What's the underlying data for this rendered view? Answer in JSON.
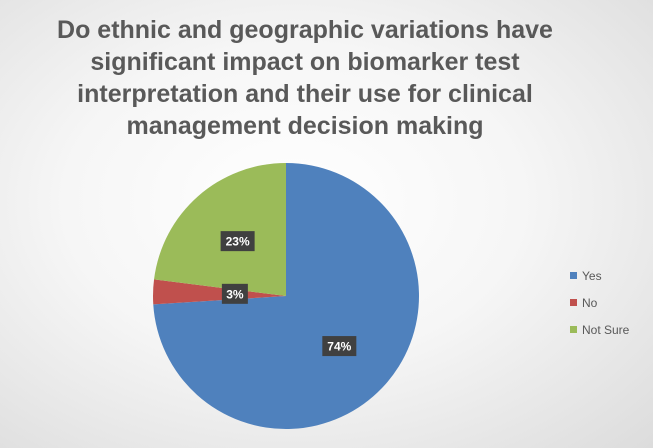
{
  "chart_data": {
    "type": "pie",
    "title": "Do ethnic and geographic variations have significant impact on biomarker test interpretation and their use for clinical management decision making",
    "categories": [
      "Yes",
      "No",
      "Not Sure"
    ],
    "values": [
      74,
      3,
      23
    ],
    "labels": [
      "74%",
      "3%",
      "23%"
    ],
    "colors": [
      "#4f81bd",
      "#c0504d",
      "#9bbb59"
    ],
    "legend_position": "right",
    "start_angle_deg": 0,
    "direction": "clockwise"
  }
}
